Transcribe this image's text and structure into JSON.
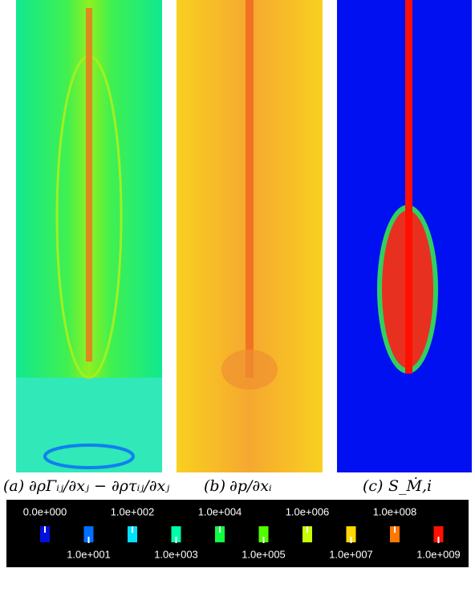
{
  "panels": [
    {
      "label": "(a)",
      "formula": "∂ρΓᵢⱼ/∂xⱼ − ∂ρτᵢⱼ/∂xⱼ"
    },
    {
      "label": "(b)",
      "formula": "∂p/∂xᵢ"
    },
    {
      "label": "(c)",
      "formula": "S_Ṁ,i"
    }
  ],
  "colorbar": {
    "items": [
      {
        "label": "0.0e+000",
        "color": "#0010e0"
      },
      {
        "label": "1.0e+001",
        "color": "#0070ff"
      },
      {
        "label": "1.0e+002",
        "color": "#00e0ff"
      },
      {
        "label": "1.0e+003",
        "color": "#00ffa8"
      },
      {
        "label": "1.0e+004",
        "color": "#10ff40"
      },
      {
        "label": "1.0e+005",
        "color": "#50ff00"
      },
      {
        "label": "1.0e+006",
        "color": "#c8ff00"
      },
      {
        "label": "1.0e+007",
        "color": "#ffd800"
      },
      {
        "label": "1.0e+008",
        "color": "#ff7800"
      },
      {
        "label": "1.0e+009",
        "color": "#ff1000"
      }
    ]
  }
}
